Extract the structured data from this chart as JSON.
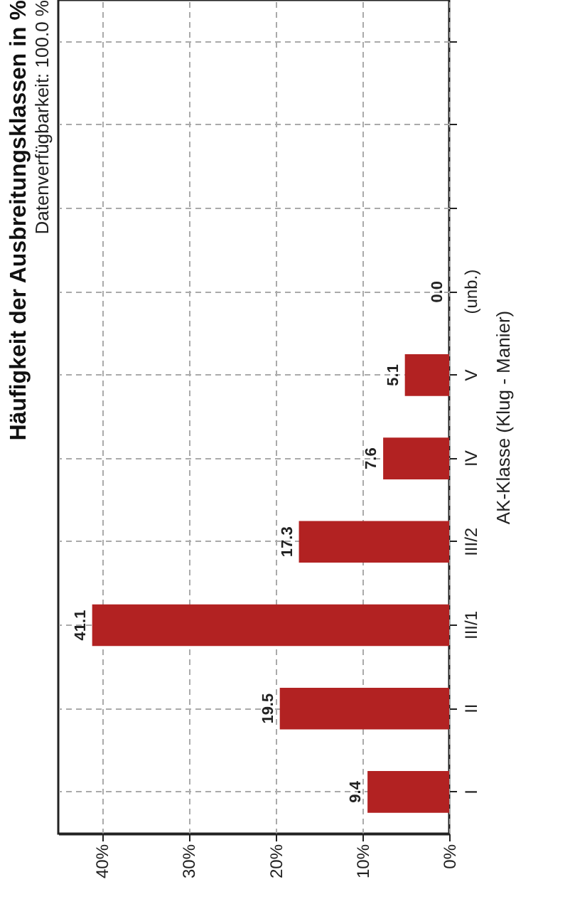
{
  "chart_data": {
    "type": "bar",
    "orientation": "horizontal",
    "title": "Häufigkeit der Ausbreitungsklassen in %",
    "subtitle": "Datenverfügbarkeit: 100.0 %",
    "ylabel": "AK-Klasse (Klug - Manier)",
    "categories": [
      null,
      null,
      null,
      "(unb.)",
      "V",
      "IV",
      "III/2",
      "III/1",
      "II",
      "I"
    ],
    "values": [
      null,
      null,
      null,
      0.0,
      5.1,
      7.6,
      17.3,
      41.1,
      19.5,
      9.4
    ],
    "value_labels": [
      null,
      null,
      null,
      "0.0",
      "5.1",
      "7.6",
      "17.3",
      "41.1",
      "19.5",
      "9.4"
    ],
    "color": "#b22222",
    "xlim": [
      45,
      0
    ],
    "xticks": [
      {
        "value": 40,
        "label": "40%"
      },
      {
        "value": 30,
        "label": "30%"
      },
      {
        "value": 20,
        "label": "20%"
      },
      {
        "value": 10,
        "label": "10%"
      },
      {
        "value": 0,
        "label": "0%"
      }
    ],
    "grid": true
  }
}
